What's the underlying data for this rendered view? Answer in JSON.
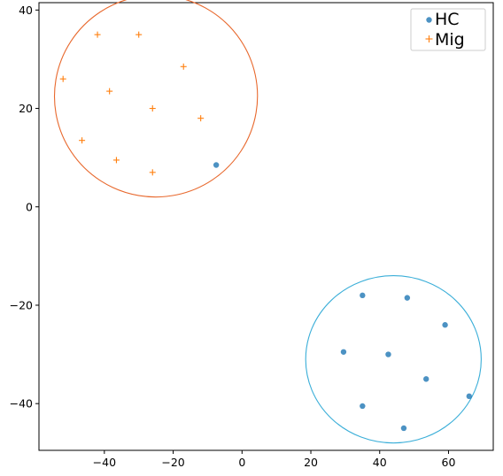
{
  "chart_data": {
    "type": "scatter",
    "title": "",
    "xlabel": "",
    "ylabel": "",
    "xlim": [
      -59,
      73
    ],
    "ylim": [
      -49.5,
      41.5
    ],
    "xticks": [
      -40,
      -20,
      0,
      20,
      40,
      60
    ],
    "yticks": [
      -40,
      -20,
      0,
      20,
      40
    ],
    "grid": false,
    "legend_position": "top-right",
    "series": [
      {
        "name": "HC",
        "marker": "circle",
        "color": "#1f77b4",
        "points": [
          {
            "x": -7.5,
            "y": 8.5
          },
          {
            "x": 35,
            "y": -18
          },
          {
            "x": 48,
            "y": -18.5
          },
          {
            "x": 59,
            "y": -24
          },
          {
            "x": 29.5,
            "y": -29.5
          },
          {
            "x": 42.5,
            "y": -30
          },
          {
            "x": 53.5,
            "y": -35
          },
          {
            "x": 35,
            "y": -40.5
          },
          {
            "x": 66,
            "y": -38.5
          },
          {
            "x": 47,
            "y": -45
          }
        ]
      },
      {
        "name": "Mig",
        "marker": "plus",
        "color": "#ff7f0e",
        "points": [
          {
            "x": -42,
            "y": 35
          },
          {
            "x": -30,
            "y": 35
          },
          {
            "x": -17,
            "y": 28.5
          },
          {
            "x": -52,
            "y": 26
          },
          {
            "x": -38.5,
            "y": 23.5
          },
          {
            "x": -26,
            "y": 20
          },
          {
            "x": -12,
            "y": 18
          },
          {
            "x": -46.5,
            "y": 13.5
          },
          {
            "x": -36.5,
            "y": 9.5
          },
          {
            "x": -26,
            "y": 7
          }
        ]
      }
    ],
    "annotations": [
      {
        "type": "ellipse",
        "cx": -25,
        "cy": 22.5,
        "rx": 29.5,
        "ry": 20.5,
        "rotation_deg": -12,
        "color": "#e8692e"
      },
      {
        "type": "ellipse",
        "cx": 44,
        "cy": -31,
        "rx": 25.5,
        "ry": 17,
        "rotation_deg": 0,
        "color": "#3aaed8"
      }
    ]
  }
}
